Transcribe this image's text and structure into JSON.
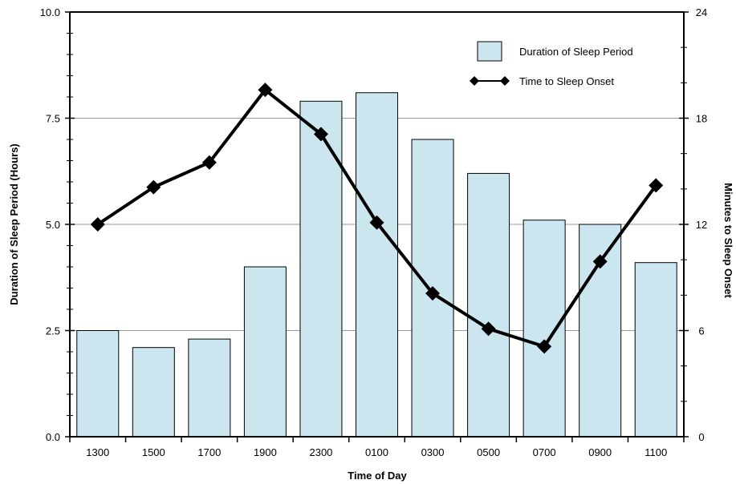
{
  "chart_data": {
    "type": "bar",
    "categories": [
      "1300",
      "1500",
      "1700",
      "1900",
      "2300",
      "0100",
      "0300",
      "0500",
      "0700",
      "0900",
      "1100"
    ],
    "xlabel": "Time of Day",
    "ylabel_left": "Duration of Sleep Period (Hours)",
    "ylabel_right": "Minutes to Sleep Onset",
    "ylim_left": [
      0,
      10
    ],
    "yticks_left": [
      "0.0",
      "2.5",
      "5.0",
      "7.5",
      "10.0"
    ],
    "ylim_right": [
      0,
      24
    ],
    "yticks_right": [
      "0",
      "6",
      "12",
      "18",
      "24"
    ],
    "grid": true,
    "legend_position": "top-right",
    "series": [
      {
        "name": "Duration of Sleep Period",
        "type": "bar",
        "axis": "left",
        "color": "#cce6f0",
        "values": [
          2.5,
          2.1,
          2.3,
          4.0,
          7.9,
          8.1,
          7.0,
          6.2,
          5.1,
          5.0,
          4.1
        ]
      },
      {
        "name": "Time to Sleep Onset",
        "type": "line",
        "axis": "right",
        "color": "#000000",
        "marker": "diamond",
        "values": [
          12.0,
          14.1,
          15.5,
          19.6,
          17.1,
          12.1,
          8.1,
          6.1,
          5.1,
          9.9,
          14.2
        ]
      }
    ]
  }
}
